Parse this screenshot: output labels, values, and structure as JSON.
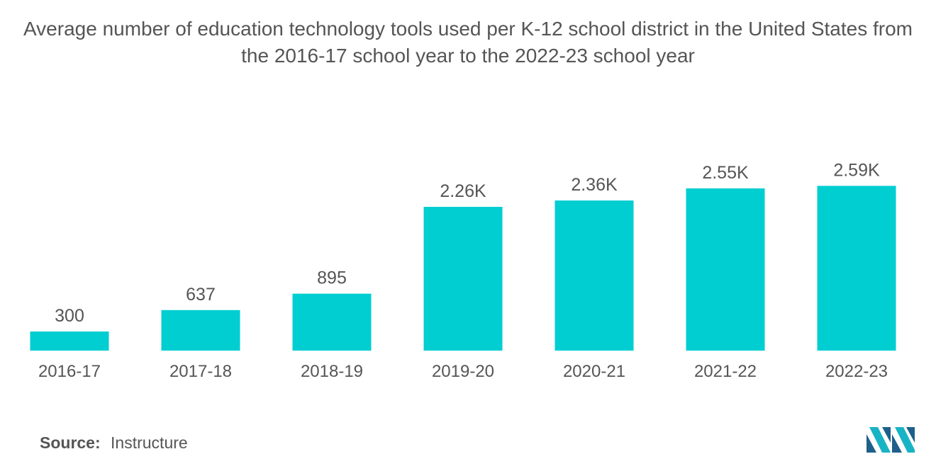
{
  "title": "Average number of education technology tools used per K-12 school district in the United States from the 2016-17 school year to the 2022-23 school year",
  "source": {
    "label": "Source:",
    "value": "Instructure"
  },
  "colors": {
    "bar": "#00CED1",
    "text": "#555555",
    "logo_dark": "#1f5f8b",
    "logo_light": "#19b3c6"
  },
  "chart_data": {
    "type": "bar",
    "title": "Average number of education technology tools used per K-12 school district in the United States from the 2016-17 school year to the 2022-23 school year",
    "categories": [
      "2016-17",
      "2017-18",
      "2018-19",
      "2019-20",
      "2020-21",
      "2021-22",
      "2022-23"
    ],
    "values": [
      300,
      637,
      895,
      2260,
      2360,
      2550,
      2590
    ],
    "data_labels": [
      "300",
      "637",
      "895",
      "2.26K",
      "2.36K",
      "2.55K",
      "2.59K"
    ],
    "xlabel": "",
    "ylabel": "",
    "grid": false,
    "legend": "none"
  }
}
